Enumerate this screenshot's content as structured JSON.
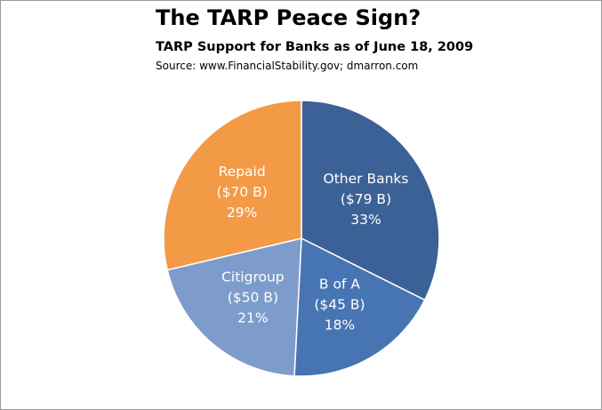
{
  "chart_data": {
    "type": "pie",
    "title": "The TARP Peace Sign?",
    "subtitle": "TARP Support for Banks as of June 18, 2009",
    "source": "Source: www.FinancialStability.gov; dmarron.com",
    "slices": [
      {
        "name": "Other Banks",
        "amount_label": "($79 B)",
        "percent_label": "33%",
        "value": 79,
        "color": "#3c6196"
      },
      {
        "name": "B of A",
        "amount_label": "($45 B)",
        "percent_label": "18%",
        "value": 45,
        "color": "#4774b2"
      },
      {
        "name": "Citigroup",
        "amount_label": "($50 B)",
        "percent_label": "21%",
        "value": 50,
        "color": "#7d9ccb"
      },
      {
        "name": "Repaid",
        "amount_label": "($70 B)",
        "percent_label": "29%",
        "value": 70,
        "color": "#f39a47"
      }
    ]
  }
}
